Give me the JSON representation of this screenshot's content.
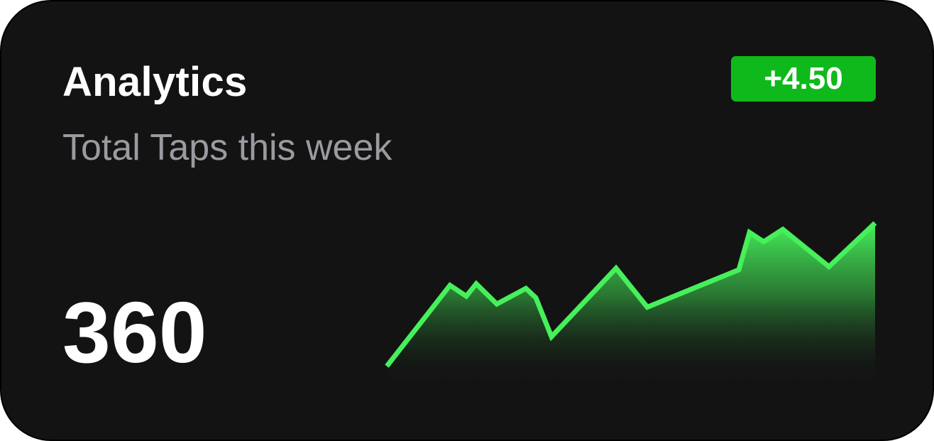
{
  "card": {
    "title": "Analytics",
    "subtitle": "Total Taps this week",
    "change_badge": "+4.50",
    "total_value": "360"
  },
  "colors": {
    "background": "#131313",
    "accent_green": "#46f05a",
    "badge_green": "#0fb91b",
    "subtitle_gray": "#9a9aa1"
  },
  "chart_data": {
    "type": "area",
    "values": [
      12,
      64,
      57,
      65,
      52,
      62,
      56,
      31,
      75,
      50,
      74,
      98,
      92,
      100,
      76,
      104
    ],
    "ylim": [
      0,
      110
    ],
    "xlabel": "",
    "ylabel": "",
    "grid": false,
    "legend": "none"
  }
}
